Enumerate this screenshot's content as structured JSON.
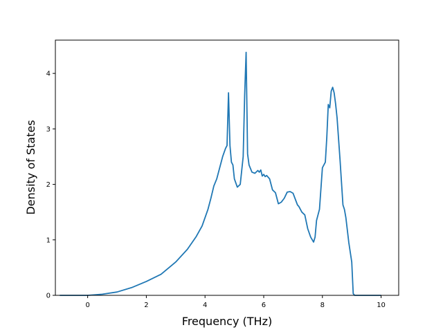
{
  "chart_data": {
    "type": "line",
    "xlabel": "Frequency (THz)",
    "ylabel": "Density of States",
    "xlim": [
      -1.1,
      10.6
    ],
    "ylim": [
      0,
      4.6
    ],
    "xticks": [
      0,
      2,
      4,
      6,
      8,
      10
    ],
    "yticks": [
      0,
      1,
      2,
      3,
      4
    ],
    "grid": false,
    "series": [
      {
        "color": "#1f77b4",
        "x": [
          -0.95,
          -0.5,
          0.0,
          0.5,
          1.0,
          1.5,
          2.0,
          2.5,
          3.0,
          3.4,
          3.7,
          3.9,
          4.1,
          4.2,
          4.3,
          4.4,
          4.5,
          4.6,
          4.7,
          4.75,
          4.8,
          4.85,
          4.9,
          4.95,
          5.0,
          5.1,
          5.2,
          5.3,
          5.35,
          5.4,
          5.45,
          5.5,
          5.6,
          5.7,
          5.8,
          5.85,
          5.9,
          5.95,
          6.0,
          6.05,
          6.1,
          6.15,
          6.2,
          6.3,
          6.4,
          6.45,
          6.5,
          6.6,
          6.7,
          6.8,
          6.9,
          7.0,
          7.1,
          7.15,
          7.2,
          7.3,
          7.4,
          7.5,
          7.6,
          7.7,
          7.75,
          7.8,
          7.85,
          7.9,
          8.0,
          8.1,
          8.15,
          8.2,
          8.25,
          8.3,
          8.35,
          8.4,
          8.45,
          8.5,
          8.6,
          8.7,
          8.75,
          8.8,
          8.9,
          9.0,
          9.05,
          9.1,
          9.2,
          10.0
        ],
        "y": [
          0.0,
          0.0,
          0.0,
          0.02,
          0.06,
          0.14,
          0.25,
          0.38,
          0.6,
          0.83,
          1.06,
          1.25,
          1.55,
          1.75,
          1.97,
          2.1,
          2.3,
          2.5,
          2.65,
          2.7,
          3.65,
          2.7,
          2.4,
          2.35,
          2.1,
          1.95,
          2.0,
          2.5,
          3.6,
          4.38,
          2.55,
          2.35,
          2.22,
          2.2,
          2.25,
          2.22,
          2.26,
          2.15,
          2.18,
          2.14,
          2.16,
          2.13,
          2.1,
          1.9,
          1.85,
          1.75,
          1.65,
          1.68,
          1.75,
          1.86,
          1.87,
          1.84,
          1.7,
          1.63,
          1.6,
          1.5,
          1.45,
          1.2,
          1.05,
          0.96,
          1.05,
          1.35,
          1.45,
          1.55,
          2.3,
          2.4,
          2.85,
          3.44,
          3.38,
          3.68,
          3.75,
          3.65,
          3.45,
          3.2,
          2.45,
          1.63,
          1.55,
          1.4,
          0.95,
          0.6,
          0.03,
          0.0,
          0.0,
          0.0
        ]
      }
    ]
  }
}
